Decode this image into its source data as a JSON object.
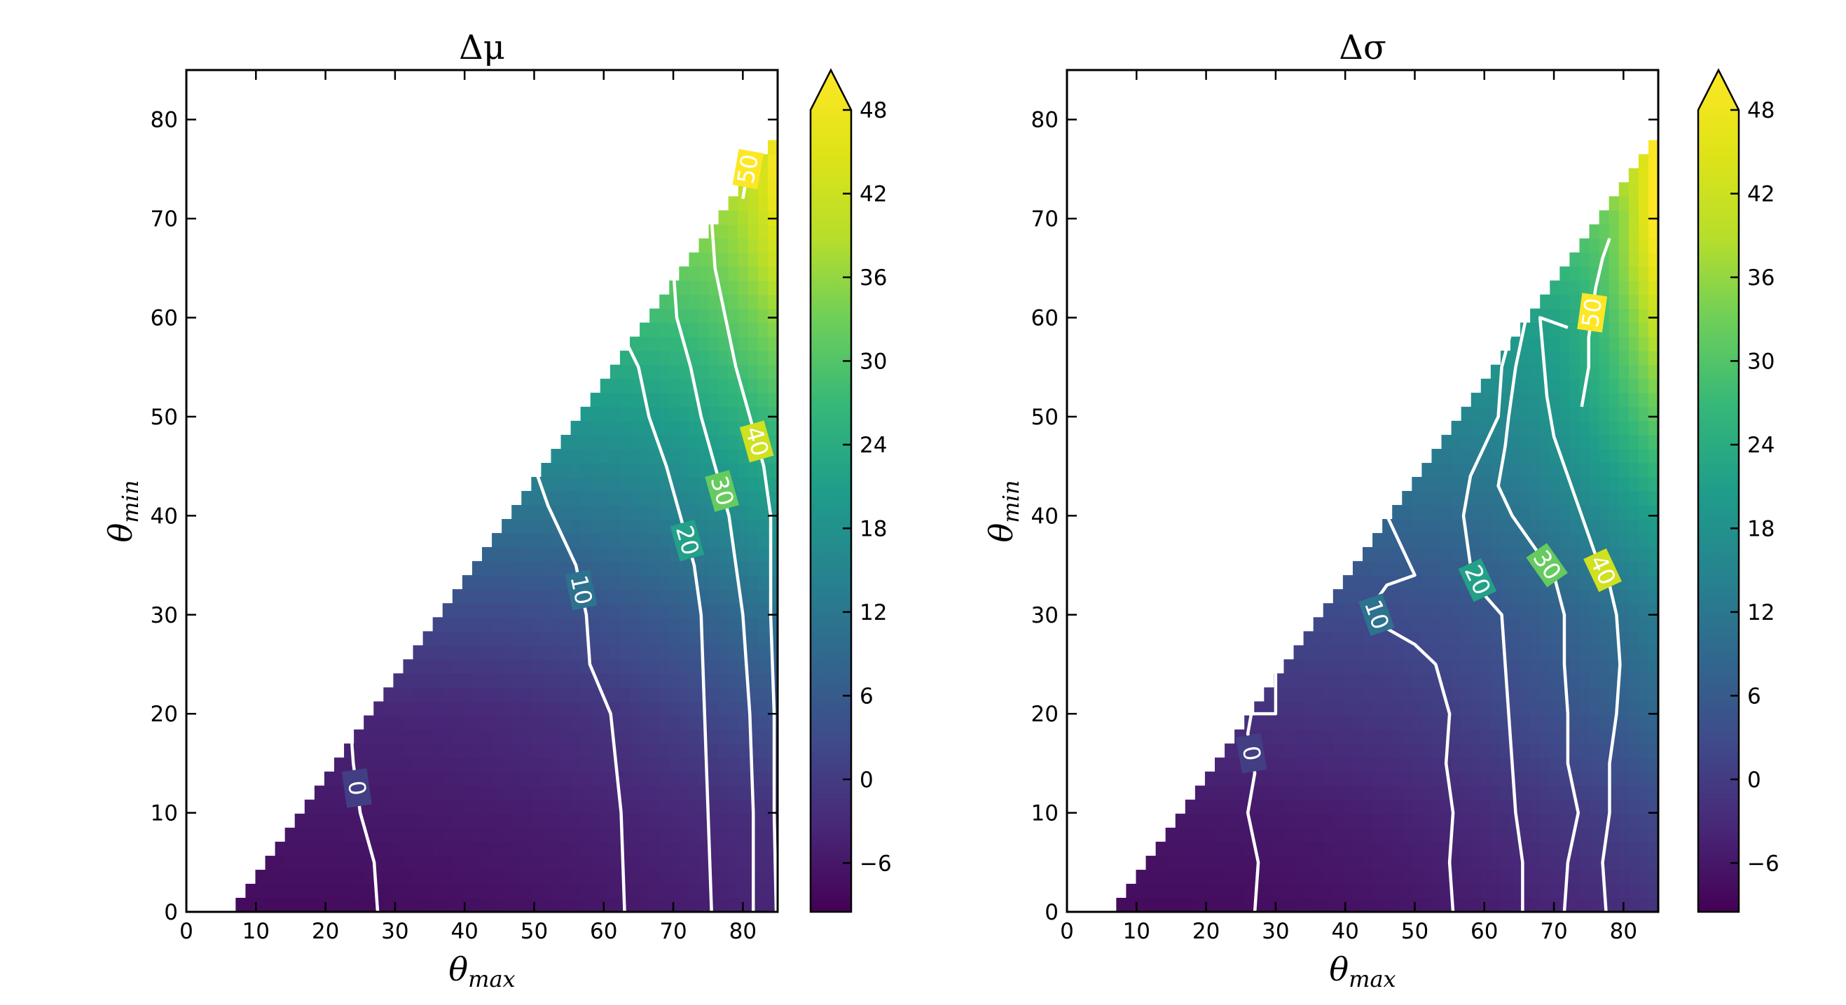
{
  "chart_data": [
    {
      "type": "heatmap",
      "title": "Δμ",
      "xlabel": {
        "base": "θ",
        "sub": "max"
      },
      "ylabel": {
        "base": "θ",
        "sub": "min"
      },
      "xlim": [
        0,
        85
      ],
      "ylim": [
        0,
        85
      ],
      "xticks": [
        0,
        10,
        20,
        30,
        40,
        50,
        60,
        70,
        80
      ],
      "yticks": [
        0,
        10,
        20,
        30,
        40,
        50,
        60,
        70,
        80
      ],
      "grid": false,
      "domain": "upper-left region blank (θmin > θmax − 6)",
      "colormap": "viridis",
      "colorbar": {
        "ticks": [
          "−6",
          "0",
          "6",
          "12",
          "18",
          "24",
          "30",
          "36",
          "42",
          "48"
        ],
        "range": [
          -9.5,
          48
        ],
        "extend": "max"
      },
      "field_profile": {
        "x_at_y": [
          0,
          10,
          20,
          30,
          40,
          50,
          60,
          70,
          80
        ],
        "value_ranges": [
          [
            -8,
            -4
          ],
          [
            -6,
            -2
          ],
          [
            -4,
            4
          ],
          [
            2,
            10
          ],
          [
            10,
            18
          ],
          [
            18,
            26
          ],
          [
            26,
            34
          ],
          [
            34,
            44
          ],
          [
            44,
            55
          ]
        ]
      },
      "contours": [
        {
          "level": 0,
          "label": "0",
          "points": [
            [
              27.5,
              0
            ],
            [
              27,
              5
            ],
            [
              25,
              10
            ],
            [
              24,
              15
            ],
            [
              23.5,
              20
            ]
          ]
        },
        {
          "level": 10,
          "label": "10",
          "points": [
            [
              63,
              0
            ],
            [
              62.5,
              10
            ],
            [
              61,
              20
            ],
            [
              58,
              25
            ],
            [
              57.5,
              30
            ],
            [
              56,
              35
            ],
            [
              54,
              38
            ],
            [
              52,
              41
            ],
            [
              50,
              45
            ]
          ]
        },
        {
          "level": 20,
          "label": "20",
          "points": [
            [
              75.5,
              0
            ],
            [
              75,
              10
            ],
            [
              74.5,
              20
            ],
            [
              74,
              30
            ],
            [
              73,
              35
            ],
            [
              71,
              40
            ],
            [
              69,
              45
            ],
            [
              66.5,
              50
            ],
            [
              65,
              55
            ],
            [
              61.5,
              60
            ]
          ]
        },
        {
          "level": 30,
          "label": "30",
          "points": [
            [
              81.5,
              0
            ],
            [
              81.5,
              10
            ],
            [
              81,
              20
            ],
            [
              80,
              30
            ],
            [
              79,
              35
            ],
            [
              78,
              40
            ],
            [
              76,
              45
            ],
            [
              74,
              50
            ],
            [
              72.5,
              55
            ],
            [
              70.5,
              60
            ],
            [
              70,
              65
            ]
          ]
        },
        {
          "level": 40,
          "label": "40",
          "points": [
            [
              84.8,
              0
            ],
            [
              84.5,
              10
            ],
            [
              84.5,
              20
            ],
            [
              84,
              30
            ],
            [
              84,
              40
            ],
            [
              83,
              45
            ],
            [
              81,
              50
            ],
            [
              79,
              55
            ],
            [
              77.5,
              60
            ],
            [
              76,
              65
            ],
            [
              75.5,
              70
            ]
          ]
        },
        {
          "level": 50,
          "label": "50",
          "points": [
            [
              80,
              72
            ],
            [
              80.5,
              74
            ],
            [
              81,
              76
            ],
            [
              81.5,
              78
            ]
          ]
        }
      ]
    },
    {
      "type": "heatmap",
      "title": "Δσ",
      "xlabel": {
        "base": "θ",
        "sub": "max"
      },
      "ylabel": {
        "base": "θ",
        "sub": "min"
      },
      "xlim": [
        0,
        85
      ],
      "ylim": [
        0,
        85
      ],
      "xticks": [
        0,
        10,
        20,
        30,
        40,
        50,
        60,
        70,
        80
      ],
      "yticks": [
        0,
        10,
        20,
        30,
        40,
        50,
        60,
        70,
        80
      ],
      "grid": false,
      "domain": "upper-left region blank (θmin > θmax − 6)",
      "colormap": "viridis",
      "colorbar": {
        "ticks": [
          "−6",
          "0",
          "6",
          "12",
          "18",
          "24",
          "30",
          "36",
          "42",
          "48"
        ],
        "range": [
          -9.5,
          48
        ],
        "extend": "max"
      },
      "field_profile": {
        "x_at_y": [
          0,
          10,
          20,
          30,
          40,
          50,
          60,
          70,
          80
        ],
        "value_ranges": [
          [
            -8,
            -2
          ],
          [
            -6,
            2
          ],
          [
            -2,
            8
          ],
          [
            2,
            12
          ],
          [
            8,
            20
          ],
          [
            14,
            30
          ],
          [
            20,
            40
          ],
          [
            30,
            52
          ],
          [
            48,
            60
          ]
        ]
      },
      "contours": [
        {
          "level": 0,
          "label": "0",
          "points": [
            [
              27,
              0
            ],
            [
              27.5,
              5
            ],
            [
              26,
              10
            ],
            [
              27,
              14
            ],
            [
              26,
              18
            ],
            [
              26.5,
              20
            ],
            [
              30,
              20
            ],
            [
              30,
              25
            ]
          ]
        },
        {
          "level": 10,
          "label": "10",
          "points": [
            [
              55.5,
              0
            ],
            [
              55,
              5
            ],
            [
              55.5,
              10
            ],
            [
              54.5,
              15
            ],
            [
              55,
              20
            ],
            [
              53,
              25
            ],
            [
              50,
              27
            ],
            [
              45,
              29
            ],
            [
              44,
              31
            ],
            [
              46,
              33
            ],
            [
              50,
              34
            ],
            [
              48,
              37
            ],
            [
              46,
              40
            ],
            [
              47,
              43
            ],
            [
              46,
              45
            ],
            [
              54,
              50
            ]
          ]
        },
        {
          "level": 20,
          "label": "20",
          "points": [
            [
              65.5,
              0
            ],
            [
              65.5,
              5
            ],
            [
              64.5,
              10
            ],
            [
              64,
              15
            ],
            [
              63.5,
              20
            ],
            [
              63,
              25
            ],
            [
              62.5,
              30
            ],
            [
              60,
              32
            ],
            [
              58,
              35
            ],
            [
              57,
              40
            ],
            [
              58,
              44
            ],
            [
              60,
              47
            ],
            [
              62,
              50
            ],
            [
              62.5,
              55
            ],
            [
              64,
              59
            ]
          ]
        },
        {
          "level": 30,
          "label": "30",
          "points": [
            [
              71.5,
              0
            ],
            [
              72,
              5
            ],
            [
              73.5,
              10
            ],
            [
              72,
              15
            ],
            [
              72,
              20
            ],
            [
              71.5,
              25
            ],
            [
              71.5,
              30
            ],
            [
              70,
              34
            ],
            [
              68,
              36
            ],
            [
              64,
              40
            ],
            [
              62,
              43
            ],
            [
              63,
              47
            ],
            [
              63.5,
              50
            ],
            [
              64.5,
              55
            ],
            [
              66,
              60
            ]
          ]
        },
        {
          "level": 40,
          "label": "40",
          "points": [
            [
              77.5,
              0
            ],
            [
              77,
              5
            ],
            [
              78,
              10
            ],
            [
              78,
              15
            ],
            [
              79,
              20
            ],
            [
              79.5,
              25
            ],
            [
              79,
              30
            ],
            [
              78,
              33
            ],
            [
              76,
              36
            ],
            [
              74,
              40
            ],
            [
              72,
              44
            ],
            [
              70,
              48
            ],
            [
              69,
              52
            ],
            [
              68.5,
              56
            ],
            [
              68,
              60
            ],
            [
              72,
              59
            ]
          ]
        },
        {
          "level": 50,
          "label": "50",
          "points": [
            [
              78,
              68
            ],
            [
              77,
              66
            ],
            [
              76,
              63
            ],
            [
              75,
              58
            ],
            [
              75,
              55
            ],
            [
              74,
              51
            ]
          ]
        }
      ]
    }
  ]
}
